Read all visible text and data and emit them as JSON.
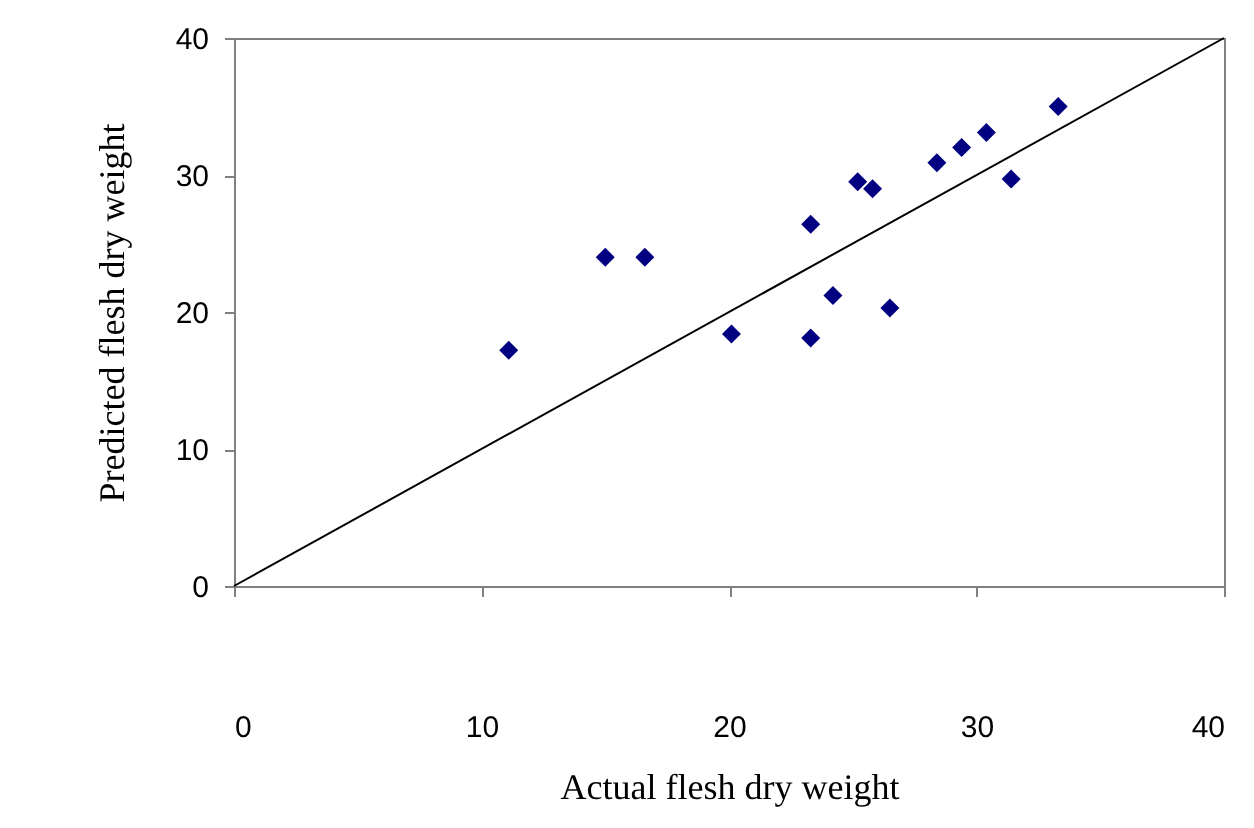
{
  "chart_data": {
    "type": "scatter",
    "xlabel": "Actual flesh dry weight",
    "ylabel": "Predicted flesh dry weight",
    "xlim": [
      0,
      40
    ],
    "ylim": [
      0,
      40
    ],
    "xticks": [
      0,
      10,
      20,
      30,
      40
    ],
    "yticks": [
      0,
      10,
      20,
      30,
      40
    ],
    "grid": false,
    "marker": "diamond",
    "series": [
      {
        "color": "#000080",
        "x": [
          11.1,
          15.0,
          16.6,
          20.1,
          23.3,
          23.3,
          24.2,
          25.2,
          25.8,
          26.5,
          28.4,
          29.4,
          30.4,
          31.4,
          33.3
        ],
        "values": [
          17.2,
          24.0,
          24.0,
          18.4,
          26.4,
          18.1,
          21.2,
          29.5,
          29.0,
          20.3,
          30.9,
          32.0,
          33.1,
          29.7,
          35.0
        ]
      },
      {
        "type": "line",
        "color": "#000000",
        "x": [
          0,
          40
        ],
        "values": [
          0,
          40
        ],
        "marker": "none"
      }
    ]
  }
}
